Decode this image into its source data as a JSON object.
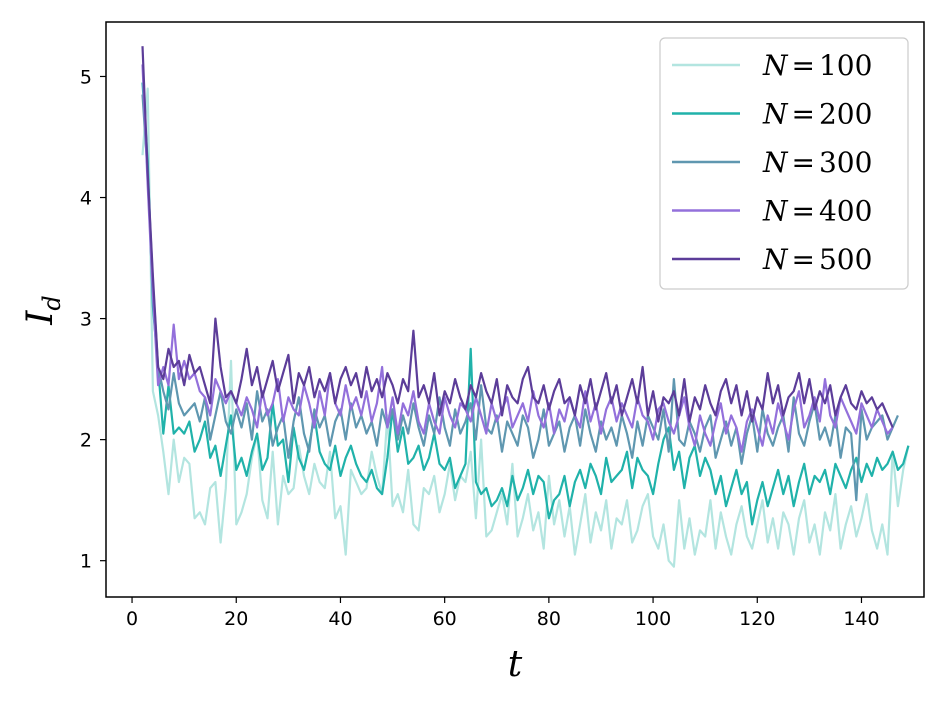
{
  "chart_data": {
    "type": "line",
    "xlabel": "t",
    "ylabel": "I_d",
    "xlim": [
      -5,
      152
    ],
    "ylim": [
      0.7,
      5.45
    ],
    "xticks": [
      0,
      20,
      40,
      60,
      80,
      100,
      120,
      140
    ],
    "yticks": [
      1,
      2,
      3,
      4,
      5
    ],
    "grid": false,
    "legend_position": "top-right",
    "series": [
      {
        "name": "N = 100",
        "label_var": "N",
        "label_val": "100",
        "color": "#b3e5e0",
        "x_start": 2,
        "values": [
          4.35,
          4.9,
          2.4,
          2.2,
          1.9,
          1.55,
          2.0,
          1.65,
          1.85,
          1.8,
          1.35,
          1.4,
          1.3,
          1.6,
          1.65,
          1.15,
          1.6,
          2.65,
          1.3,
          1.4,
          1.55,
          1.85,
          2.05,
          1.5,
          1.35,
          1.9,
          1.3,
          1.7,
          1.55,
          1.6,
          1.95,
          1.7,
          1.55,
          1.8,
          1.65,
          1.6,
          1.9,
          1.35,
          1.45,
          1.05,
          1.75,
          1.65,
          1.55,
          1.6,
          1.9,
          1.7,
          1.55,
          2.2,
          1.45,
          1.55,
          1.4,
          1.75,
          1.3,
          1.25,
          1.6,
          1.55,
          1.7,
          1.4,
          1.55,
          1.8,
          1.5,
          1.7,
          1.65,
          1.9,
          1.35,
          2.0,
          1.2,
          1.25,
          1.4,
          1.55,
          1.3,
          1.8,
          1.2,
          1.35,
          1.55,
          1.25,
          1.4,
          1.1,
          1.7,
          1.3,
          1.5,
          1.2,
          1.45,
          1.05,
          1.3,
          1.55,
          1.15,
          1.4,
          1.25,
          1.5,
          1.1,
          1.35,
          1.3,
          1.5,
          1.15,
          1.25,
          1.45,
          1.55,
          1.2,
          1.1,
          1.3,
          1.0,
          0.95,
          1.5,
          1.1,
          1.35,
          1.05,
          1.25,
          1.2,
          1.5,
          1.1,
          1.4,
          1.2,
          1.05,
          1.3,
          1.45,
          1.2,
          1.1,
          1.3,
          1.5,
          1.15,
          1.35,
          1.1,
          1.4,
          1.3,
          1.05,
          1.35,
          1.5,
          1.15,
          1.3,
          1.05,
          1.4,
          1.25,
          1.55,
          1.1,
          1.3,
          1.45,
          1.2,
          1.35,
          1.55,
          1.25,
          1.1,
          1.3,
          1.05,
          1.9,
          1.45,
          1.75,
          1.95
        ]
      },
      {
        "name": "N = 200",
        "label_var": "N",
        "label_val": "200",
        "color": "#20b2aa",
        "x_start": 2,
        "values": [
          4.95,
          4.3,
          3.1,
          2.6,
          2.05,
          2.45,
          2.05,
          2.1,
          2.05,
          2.15,
          1.9,
          2.0,
          2.15,
          1.85,
          1.95,
          1.7,
          1.95,
          2.2,
          1.75,
          1.85,
          1.7,
          1.9,
          2.05,
          1.75,
          1.85,
          2.3,
          1.95,
          2.0,
          1.65,
          2.1,
          1.85,
          1.75,
          1.95,
          2.2,
          1.9,
          1.8,
          1.75,
          1.95,
          1.7,
          1.85,
          1.95,
          1.8,
          1.7,
          1.65,
          1.75,
          1.6,
          1.55,
          1.85,
          2.25,
          1.9,
          2.1,
          1.8,
          1.85,
          1.95,
          1.75,
          1.85,
          2.05,
          1.8,
          1.75,
          1.85,
          1.6,
          1.7,
          1.8,
          2.75,
          1.65,
          1.55,
          1.6,
          1.45,
          1.5,
          1.6,
          1.45,
          1.7,
          1.5,
          1.6,
          1.75,
          1.55,
          1.7,
          1.65,
          1.35,
          1.5,
          1.55,
          1.7,
          1.45,
          1.65,
          1.75,
          1.6,
          1.8,
          1.7,
          1.55,
          1.85,
          1.65,
          1.7,
          1.75,
          1.9,
          1.6,
          1.85,
          1.75,
          1.7,
          1.55,
          1.8,
          2.0,
          2.1,
          1.75,
          1.9,
          1.6,
          1.85,
          1.95,
          1.7,
          1.85,
          1.75,
          1.55,
          1.7,
          1.45,
          1.6,
          1.75,
          1.55,
          1.65,
          1.3,
          1.5,
          1.65,
          1.45,
          1.6,
          1.75,
          1.55,
          1.7,
          1.45,
          1.65,
          1.8,
          1.55,
          1.7,
          1.65,
          1.75,
          1.55,
          1.8,
          1.7,
          1.6,
          1.75,
          1.85,
          1.65,
          1.8,
          1.7,
          1.85,
          1.75,
          1.8,
          1.9,
          1.75,
          1.8,
          1.95
        ]
      },
      {
        "name": "N = 300",
        "label_var": "N",
        "label_val": "300",
        "color": "#5f97b0",
        "x_start": 2,
        "values": [
          4.85,
          4.2,
          3.3,
          2.6,
          2.4,
          2.25,
          2.55,
          2.3,
          2.2,
          2.25,
          2.3,
          2.15,
          2.35,
          2.0,
          2.2,
          2.4,
          2.15,
          2.05,
          2.25,
          2.1,
          2.3,
          2.0,
          2.4,
          2.15,
          2.25,
          1.95,
          2.1,
          2.2,
          1.85,
          2.15,
          2.35,
          2.05,
          1.9,
          2.25,
          2.1,
          2.2,
          1.95,
          2.15,
          2.25,
          2.0,
          2.3,
          2.1,
          2.2,
          2.05,
          2.15,
          1.95,
          2.25,
          2.1,
          2.25,
          2.0,
          2.2,
          2.05,
          2.3,
          2.1,
          1.95,
          2.2,
          2.05,
          2.35,
          2.1,
          1.95,
          2.25,
          2.05,
          2.15,
          2.3,
          2.0,
          2.45,
          2.1,
          2.05,
          2.2,
          1.9,
          2.15,
          2.05,
          1.95,
          2.2,
          2.1,
          1.85,
          2.0,
          2.25,
          1.95,
          2.05,
          2.15,
          1.9,
          2.1,
          2.2,
          1.95,
          2.25,
          2.05,
          1.9,
          2.15,
          2.0,
          2.1,
          1.95,
          2.2,
          2.05,
          1.85,
          2.15,
          1.95,
          2.2,
          2.1,
          2.0,
          2.25,
          1.9,
          2.5,
          2.0,
          1.95,
          2.15,
          2.05,
          1.9,
          2.1,
          2.2,
          1.85,
          2.0,
          2.15,
          1.95,
          2.1,
          1.8,
          2.05,
          2.2,
          1.9,
          2.25,
          2.05,
          1.95,
          2.1,
          2.2,
          1.9,
          2.35,
          2.05,
          1.95,
          2.15,
          2.3,
          2.0,
          2.1,
          1.95,
          2.2,
          1.85,
          2.1,
          2.05,
          1.5,
          2.25,
          2.0,
          2.1,
          2.15,
          2.2,
          2.0,
          2.1,
          2.2
        ]
      },
      {
        "name": "N = 400",
        "label_var": "N",
        "label_val": "400",
        "color": "#9370db",
        "x_start": 2,
        "values": [
          5.1,
          4.1,
          3.2,
          2.45,
          2.6,
          2.45,
          2.95,
          2.5,
          2.65,
          2.5,
          2.55,
          2.4,
          2.35,
          2.2,
          2.5,
          2.4,
          2.3,
          2.4,
          2.3,
          2.2,
          2.35,
          2.25,
          2.1,
          2.4,
          2.2,
          2.3,
          2.5,
          2.15,
          2.35,
          2.25,
          2.2,
          2.45,
          2.3,
          2.1,
          2.4,
          2.2,
          2.55,
          2.3,
          2.2,
          2.45,
          2.25,
          2.35,
          2.2,
          2.4,
          2.15,
          2.3,
          2.6,
          2.1,
          2.35,
          2.05,
          2.3,
          2.2,
          2.4,
          2.15,
          2.05,
          2.3,
          2.15,
          2.05,
          2.35,
          2.2,
          2.1,
          2.3,
          2.25,
          2.15,
          2.35,
          2.2,
          2.05,
          2.3,
          2.15,
          2.25,
          2.35,
          2.1,
          2.2,
          2.3,
          2.15,
          2.4,
          2.2,
          2.1,
          2.3,
          2.05,
          2.25,
          2.15,
          2.35,
          2.2,
          2.1,
          2.4,
          2.15,
          2.3,
          2.05,
          2.25,
          2.35,
          2.15,
          2.3,
          2.2,
          2.1,
          2.35,
          2.2,
          2.15,
          2.0,
          2.25,
          2.3,
          2.15,
          2.05,
          2.2,
          2.35,
          2.1,
          1.95,
          2.2,
          2.05,
          1.95,
          2.15,
          2.3,
          2.05,
          2.2,
          2.1,
          1.9,
          2.15,
          2.25,
          2.1,
          1.95,
          2.2,
          2.05,
          2.3,
          2.15,
          2.0,
          2.25,
          2.4,
          2.1,
          2.2,
          2.35,
          2.15,
          2.5,
          2.2,
          2.1,
          2.35,
          2.25,
          2.15,
          2.05,
          2.3,
          2.2,
          2.1,
          2.25,
          2.15,
          2.05,
          2.1
        ]
      },
      {
        "name": "N = 500",
        "label_var": "N",
        "label_val": "500",
        "color": "#5c3d99",
        "x_start": 2,
        "values": [
          5.25,
          4.2,
          3.35,
          2.6,
          2.5,
          2.75,
          2.6,
          2.65,
          2.45,
          2.7,
          2.55,
          2.6,
          2.45,
          2.3,
          3.0,
          2.6,
          2.35,
          2.4,
          2.3,
          2.5,
          2.75,
          2.45,
          2.6,
          2.35,
          2.5,
          2.65,
          2.4,
          2.55,
          2.7,
          2.3,
          2.55,
          2.45,
          2.6,
          2.35,
          2.5,
          2.4,
          2.55,
          2.3,
          2.5,
          2.6,
          2.45,
          2.55,
          2.35,
          2.6,
          2.4,
          2.5,
          2.35,
          2.55,
          2.45,
          2.3,
          2.5,
          2.4,
          2.9,
          2.35,
          2.45,
          2.3,
          2.55,
          2.2,
          2.4,
          2.3,
          2.5,
          2.35,
          2.25,
          2.45,
          2.35,
          2.55,
          2.4,
          2.3,
          2.5,
          2.2,
          2.45,
          2.35,
          2.3,
          2.5,
          2.6,
          2.35,
          2.3,
          2.45,
          2.25,
          2.4,
          2.5,
          2.3,
          2.35,
          2.2,
          2.45,
          2.3,
          2.5,
          2.25,
          2.4,
          2.55,
          2.3,
          2.45,
          2.2,
          2.35,
          2.5,
          2.3,
          2.6,
          2.2,
          2.4,
          2.15,
          2.35,
          2.3,
          2.4,
          2.2,
          2.5,
          2.15,
          2.35,
          2.25,
          2.45,
          2.3,
          2.2,
          2.4,
          2.5,
          2.3,
          2.45,
          2.2,
          2.4,
          2.15,
          2.35,
          2.25,
          2.55,
          2.3,
          2.45,
          2.2,
          2.35,
          2.4,
          2.55,
          2.3,
          2.5,
          2.25,
          2.4,
          2.3,
          2.45,
          2.2,
          2.35,
          2.45,
          2.3,
          2.25,
          2.4,
          2.3,
          2.35,
          2.25,
          2.3,
          2.2,
          2.1
        ]
      }
    ]
  }
}
